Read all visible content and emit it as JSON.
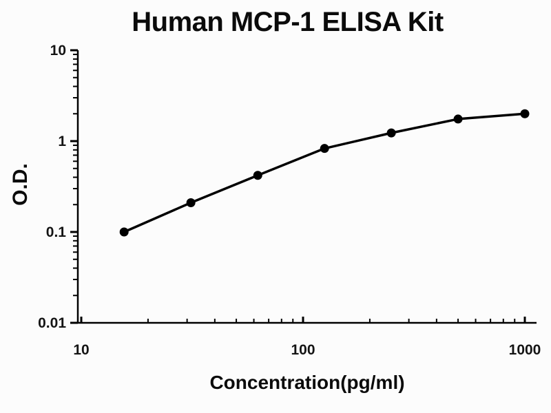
{
  "title": "Human MCP-1 ELISA Kit",
  "chart_data": {
    "type": "line",
    "title": "Human MCP-1 ELISA Kit",
    "xlabel": "Concentration(pg/ml)",
    "ylabel": "O.D.",
    "xscale": "log",
    "yscale": "log",
    "xlim": [
      10,
      1000
    ],
    "ylim": [
      0.01,
      10
    ],
    "grid": false,
    "legend": false,
    "marker": "filled-circle",
    "line_color": "#000000",
    "marker_color": "#000000",
    "background_color": "#fcfcfc",
    "x_ticks": [
      {
        "value": 10,
        "label": "10"
      },
      {
        "value": 100,
        "label": "100"
      },
      {
        "value": 1000,
        "label": "1000"
      }
    ],
    "y_ticks": [
      {
        "value": 10,
        "label": "10"
      },
      {
        "value": 1,
        "label": "1"
      },
      {
        "value": 0.1,
        "label": "0.1"
      },
      {
        "value": 0.01,
        "label": "0.01"
      }
    ],
    "series": [
      {
        "x": [
          15.6,
          31.2,
          62.5,
          125,
          250,
          500,
          1000
        ],
        "y": [
          0.1,
          0.21,
          0.42,
          0.83,
          1.23,
          1.75,
          2.0
        ]
      }
    ]
  }
}
